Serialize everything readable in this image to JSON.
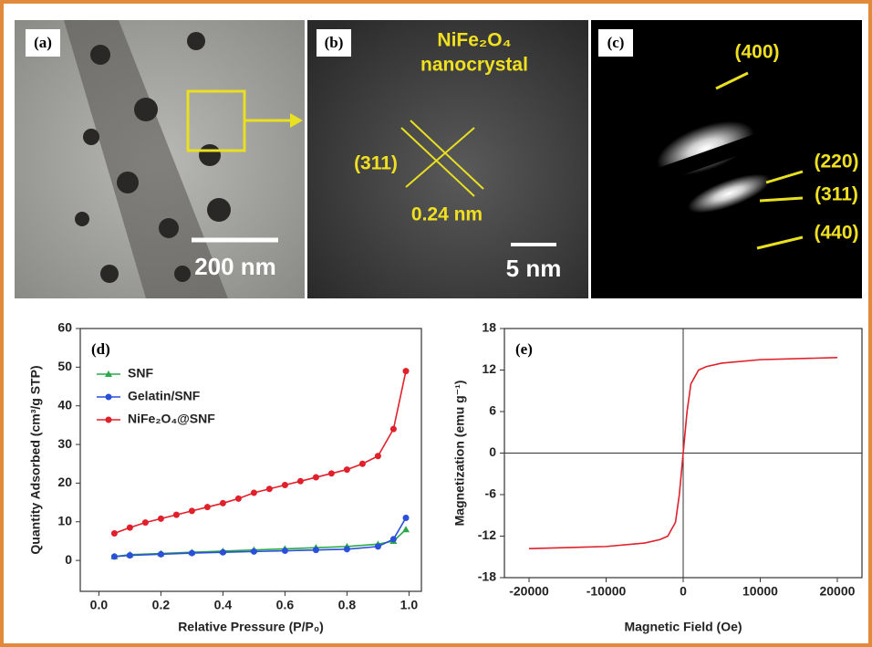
{
  "panels": {
    "a": {
      "label": "(a)",
      "scale": "200 nm"
    },
    "b": {
      "label": "(b)",
      "title_1": "NiFe₂O₄",
      "title_2": "nanocrystal",
      "plane": "(311)",
      "spacing": "0.24 nm",
      "scale": "5 nm"
    },
    "c": {
      "label": "(c)",
      "r1": "(400)",
      "r2": "(220)",
      "r3": "(311)",
      "r4": "(440)"
    }
  },
  "chart_data": [
    {
      "type": "line",
      "panel_label": "(d)",
      "x_label": "Relative Pressure (P/P₀)",
      "y_label": "Quantity Adsorbed (cm³/g STP)",
      "xlim": [
        -0.06,
        1.04
      ],
      "ylim": [
        -8,
        60
      ],
      "xticks": [
        {
          "value": 0,
          "label": "0.0"
        },
        0.2,
        0.4,
        0.6,
        0.8,
        {
          "value": 1,
          "label": "1.0"
        }
      ],
      "yticks": [
        0,
        10,
        20,
        30,
        40,
        50,
        60
      ],
      "legend": "upper left",
      "series": [
        {
          "name": "SNF",
          "color": "#2aa84a",
          "marker": "triangle",
          "x": [
            0.05,
            0.1,
            0.2,
            0.3,
            0.4,
            0.5,
            0.6,
            0.7,
            0.8,
            0.9,
            0.95,
            0.99
          ],
          "values": [
            1,
            1.5,
            1.8,
            2.1,
            2.4,
            2.7,
            3,
            3.3,
            3.6,
            4.2,
            5,
            8
          ]
        },
        {
          "name": "Gelatin/SNF",
          "color": "#2a4fd8",
          "marker": "circle",
          "x": [
            0.05,
            0.1,
            0.2,
            0.3,
            0.4,
            0.5,
            0.6,
            0.7,
            0.8,
            0.9,
            0.95,
            0.99
          ],
          "values": [
            1,
            1.3,
            1.6,
            1.9,
            2.1,
            2.3,
            2.5,
            2.7,
            2.9,
            3.6,
            5.5,
            11
          ]
        },
        {
          "name": "NiFe₂O₄@SNF",
          "color": "#e0202a",
          "marker": "circle",
          "x": [
            0.05,
            0.1,
            0.15,
            0.2,
            0.25,
            0.3,
            0.35,
            0.4,
            0.45,
            0.5,
            0.55,
            0.6,
            0.65,
            0.7,
            0.75,
            0.8,
            0.85,
            0.9,
            0.95,
            0.99
          ],
          "values": [
            7,
            8.5,
            9.8,
            10.8,
            11.8,
            12.8,
            13.8,
            14.8,
            16,
            17.5,
            18.5,
            19.5,
            20.5,
            21.5,
            22.5,
            23.5,
            25,
            27,
            34,
            49
          ]
        }
      ]
    },
    {
      "type": "line",
      "panel_label": "(e)",
      "x_label": "Magnetic Field (Oe)",
      "y_label": "Magnetization (emu g⁻¹)",
      "xlim": [
        -23200,
        23200
      ],
      "ylim": [
        -18,
        18
      ],
      "xticks": [
        -20000,
        -10000,
        0,
        10000,
        20000
      ],
      "yticks": [
        -18,
        -12,
        -6,
        0,
        6,
        12,
        18
      ],
      "series": [
        {
          "color": "#e0202a",
          "x": [
            -20000,
            -10000,
            -5000,
            -3000,
            -2000,
            -1000,
            -500,
            0,
            500,
            1000,
            2000,
            3000,
            5000,
            10000,
            20000
          ],
          "values": [
            -13.8,
            -13.5,
            -13,
            -12.5,
            -12,
            -10,
            -6,
            0,
            6,
            10,
            12,
            12.5,
            13,
            13.5,
            13.8
          ]
        }
      ]
    }
  ]
}
